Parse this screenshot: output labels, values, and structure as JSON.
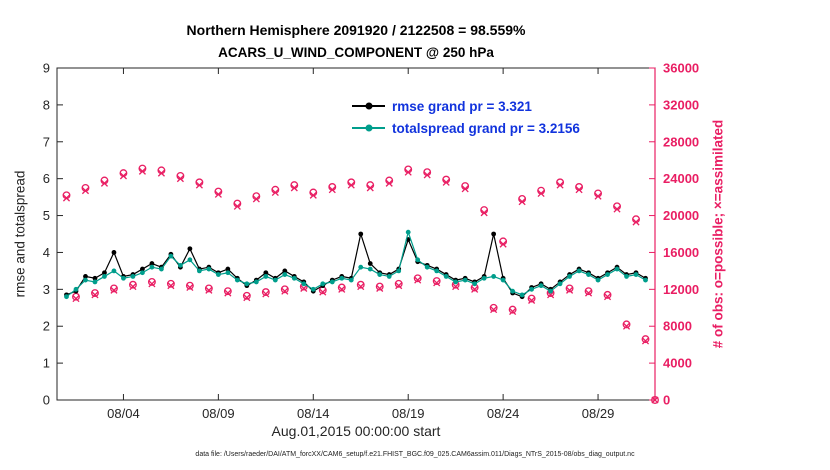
{
  "header": {
    "title_line1": "Northern Hemisphere 2091920 / 2122508 = 98.559%",
    "title_line2": "ACARS_U_WIND_COMPONENT @ 250 hPa"
  },
  "chart_data": {
    "type": "line",
    "title": "Northern Hemisphere 2091920 / 2122508 = 98.559%",
    "subtitle": "ACARS_U_WIND_COMPONENT @ 250 hPa",
    "xlabel": "Aug.01,2015 00:00:00 start",
    "ylabel_left": "rmse and totalspread",
    "ylabel_right": "# of obs: o=possible; ×=assimilated",
    "caption": "data file: /Users/raeder/DAI/ATM_forcXX/CAM6_setup/f.e21.FHIST_BGC.f09_025.CAM6assim.011/Diags_NTrS_2015-08/obs_diag_output.nc",
    "xlim": [
      0.5,
      32
    ],
    "ylim_left": [
      0,
      9
    ],
    "ylim_right": [
      0,
      36000
    ],
    "grid": false,
    "legend_position": "upper-center-inside",
    "xticks": [
      {
        "pos": 4,
        "label": "08/04"
      },
      {
        "pos": 9,
        "label": "08/09"
      },
      {
        "pos": 14,
        "label": "08/14"
      },
      {
        "pos": 19,
        "label": "08/19"
      },
      {
        "pos": 24,
        "label": "08/24"
      },
      {
        "pos": 29,
        "label": "08/29"
      }
    ],
    "yticks_left": [
      0,
      1,
      2,
      3,
      4,
      5,
      6,
      7,
      8,
      9
    ],
    "yticks_right": [
      0,
      4000,
      8000,
      12000,
      16000,
      20000,
      24000,
      28000,
      32000,
      36000
    ],
    "colors": {
      "rmse": "#000000",
      "totalspread": "#009e8c",
      "obs": "#e91e63",
      "legend_text": "#1133dd",
      "axis": "#262626"
    },
    "legend": [
      {
        "series": "rmse",
        "label": "rmse grand pr = 3.321"
      },
      {
        "series": "totalspread",
        "label": "totalspread grand pr = 3.2156"
      }
    ],
    "x": [
      1,
      1.5,
      2,
      2.5,
      3,
      3.5,
      4,
      4.5,
      5,
      5.5,
      6,
      6.5,
      7,
      7.5,
      8,
      8.5,
      9,
      9.5,
      10,
      10.5,
      11,
      11.5,
      12,
      12.5,
      13,
      13.5,
      14,
      14.5,
      15,
      15.5,
      16,
      16.5,
      17,
      17.5,
      18,
      18.5,
      19,
      19.5,
      20,
      20.5,
      21,
      21.5,
      22,
      22.5,
      23,
      23.5,
      24,
      24.5,
      25,
      25.5,
      26,
      26.5,
      27,
      27.5,
      28,
      28.5,
      29,
      29.5,
      30,
      30.5,
      31,
      31.5,
      32
    ],
    "series": [
      {
        "name": "rmse",
        "style": "line-dot",
        "axis": "left",
        "color_key": "rmse",
        "values": [
          2.85,
          2.95,
          3.35,
          3.3,
          3.45,
          4.0,
          3.35,
          3.4,
          3.55,
          3.7,
          3.6,
          3.95,
          3.6,
          4.1,
          3.55,
          3.6,
          3.45,
          3.55,
          3.3,
          3.1,
          3.25,
          3.45,
          3.3,
          3.5,
          3.35,
          3.2,
          2.95,
          3.1,
          3.25,
          3.35,
          3.3,
          4.5,
          3.7,
          3.45,
          3.4,
          3.55,
          4.35,
          3.75,
          3.65,
          3.55,
          3.4,
          3.25,
          3.3,
          3.2,
          3.35,
          4.5,
          3.3,
          2.9,
          2.8,
          3.05,
          3.15,
          3.0,
          3.2,
          3.4,
          3.55,
          3.45,
          3.3,
          3.45,
          3.6,
          3.4,
          3.45,
          3.3,
          null
        ]
      },
      {
        "name": "totalspread",
        "style": "line-dot",
        "axis": "left",
        "color_key": "totalspread",
        "values": [
          2.8,
          3.0,
          3.25,
          3.2,
          3.35,
          3.5,
          3.3,
          3.35,
          3.45,
          3.6,
          3.55,
          3.9,
          3.65,
          3.8,
          3.5,
          3.55,
          3.4,
          3.45,
          3.25,
          3.15,
          3.2,
          3.35,
          3.25,
          3.4,
          3.3,
          3.15,
          3.0,
          3.15,
          3.2,
          3.3,
          3.25,
          3.6,
          3.55,
          3.4,
          3.35,
          3.5,
          4.55,
          3.8,
          3.6,
          3.5,
          3.35,
          3.2,
          3.25,
          3.15,
          3.3,
          3.35,
          3.25,
          2.95,
          2.85,
          3.0,
          3.1,
          2.95,
          3.15,
          3.35,
          3.5,
          3.4,
          3.25,
          3.4,
          3.55,
          3.35,
          3.4,
          3.25,
          null
        ]
      },
      {
        "name": "obs_possible",
        "style": "scatter-circle",
        "axis": "right",
        "color_key": "obs",
        "values": [
          22200,
          11200,
          23000,
          11600,
          23800,
          12100,
          24600,
          12500,
          25100,
          12800,
          24900,
          12600,
          24300,
          12400,
          23600,
          12100,
          22600,
          11800,
          21300,
          11300,
          22100,
          11700,
          22800,
          12000,
          23300,
          12300,
          22500,
          11900,
          23100,
          12200,
          23600,
          12500,
          23300,
          12300,
          23800,
          12600,
          25000,
          13200,
          24700,
          12900,
          23900,
          12500,
          23200,
          12200,
          20600,
          10000,
          17200,
          9800,
          21800,
          11000,
          22700,
          11600,
          23600,
          12100,
          23100,
          11800,
          22400,
          11400,
          21000,
          8200,
          19600,
          6600,
          0
        ]
      },
      {
        "name": "obs_assimilated",
        "style": "scatter-x",
        "axis": "right",
        "color_key": "obs",
        "values": [
          21900,
          11000,
          22700,
          11400,
          23500,
          11900,
          24300,
          12300,
          24800,
          12600,
          24600,
          12400,
          24000,
          12200,
          23300,
          11900,
          22300,
          11600,
          21000,
          11100,
          21800,
          11500,
          22500,
          11800,
          23000,
          12100,
          22200,
          11700,
          22800,
          12000,
          23300,
          12300,
          23000,
          12100,
          23500,
          12400,
          24700,
          13000,
          24400,
          12700,
          23600,
          12300,
          22900,
          12000,
          20300,
          9800,
          16900,
          9600,
          21500,
          10800,
          22400,
          11400,
          23300,
          11900,
          22800,
          11600,
          22100,
          11200,
          20700,
          8000,
          19300,
          6400,
          0
        ]
      }
    ]
  }
}
